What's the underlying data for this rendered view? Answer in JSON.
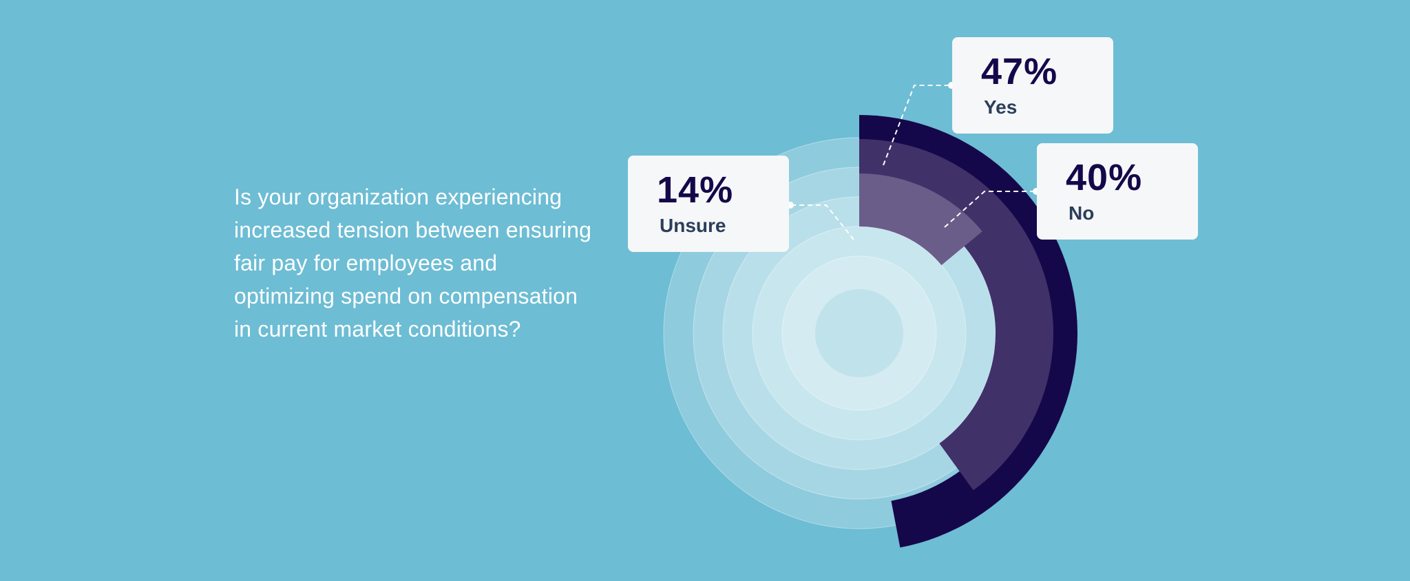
{
  "question": "Is your organization experiencing increased tension between ensuring fair pay for employees and optimizing spend on compensation in current market conditions?",
  "colors": {
    "background": "#6dbdd4",
    "ring_track": "#ffffff",
    "center_disc": "#c0e2eb",
    "yes": "#15084a",
    "no": "#413169",
    "unsure": "#6b5d8a",
    "callout_bg": "#f5f7f8"
  },
  "chart_data": {
    "type": "radial-bar",
    "title": "",
    "series": [
      {
        "name": "Yes",
        "value": 47,
        "display": "47%"
      },
      {
        "name": "No",
        "value": 40,
        "display": "40%"
      },
      {
        "name": "Unsure",
        "value": 14,
        "display": "14%"
      }
    ],
    "unit": "%",
    "max": 100
  }
}
